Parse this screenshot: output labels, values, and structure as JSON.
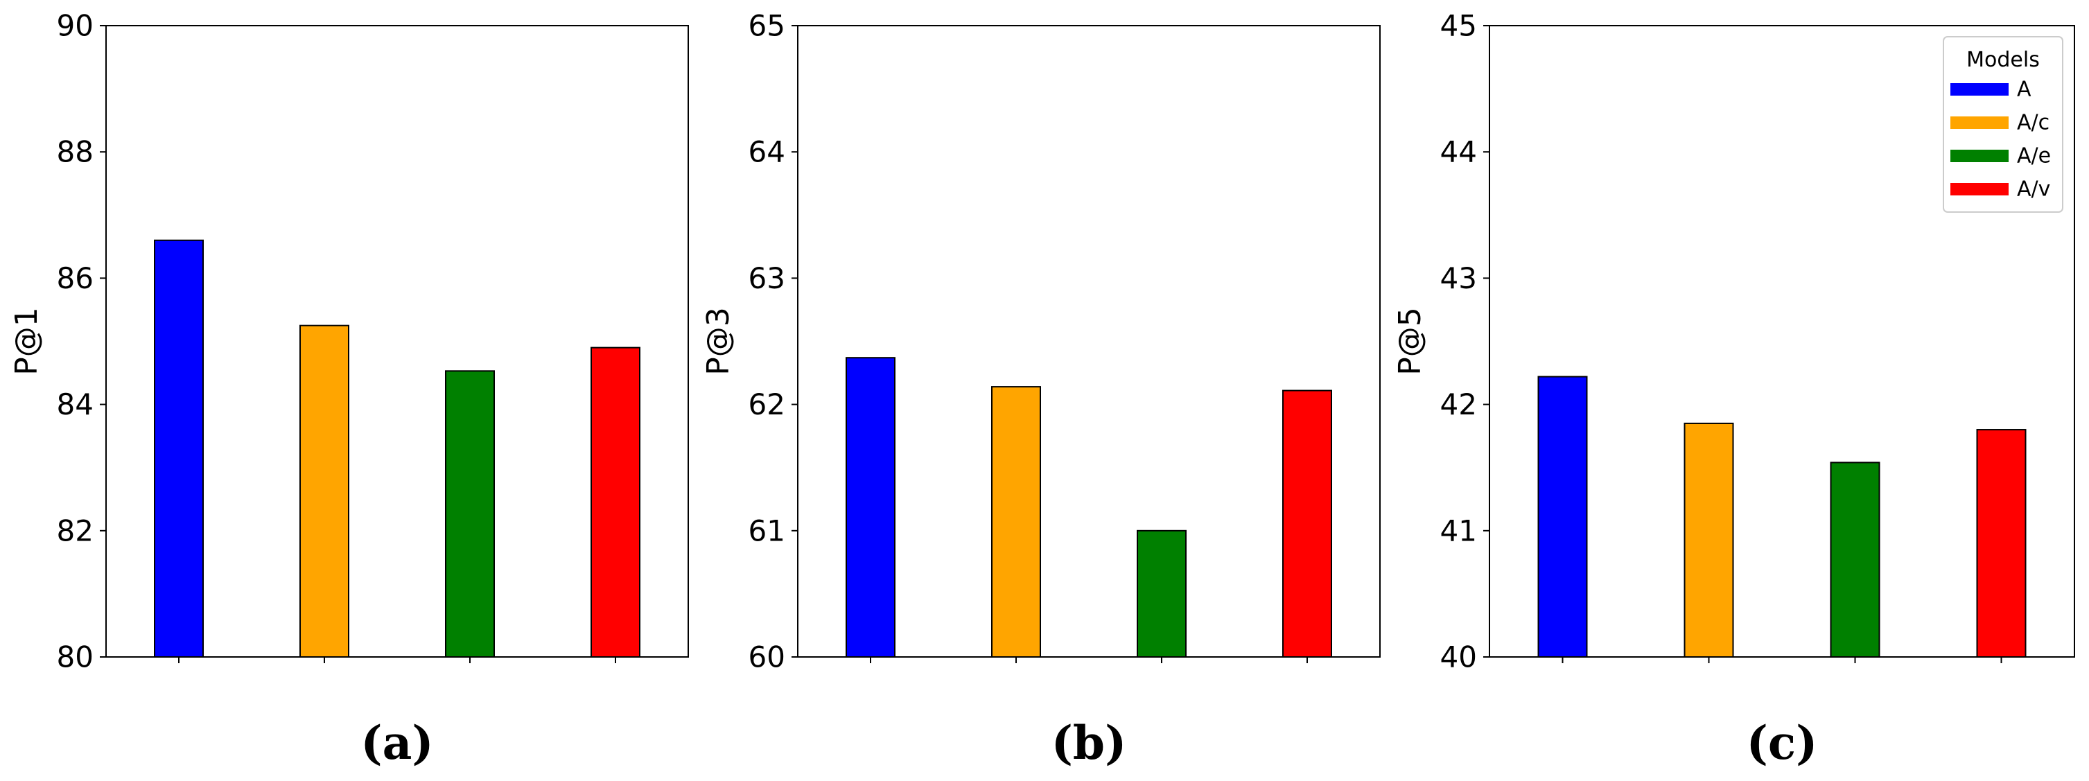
{
  "chart_data": [
    {
      "type": "bar",
      "categories": [
        "A",
        "A/c",
        "A/e",
        "A/v"
      ],
      "values": [
        86.6,
        85.25,
        84.53,
        84.9
      ],
      "colors": [
        "#0000ff",
        "#ffa500",
        "#008000",
        "#ff0000"
      ],
      "ylabel": "P@1",
      "ylim": [
        80,
        90
      ],
      "yticks": [
        80,
        82,
        84,
        86,
        88,
        90
      ],
      "caption": "(a)",
      "grid": false
    },
    {
      "type": "bar",
      "categories": [
        "A",
        "A/c",
        "A/e",
        "A/v"
      ],
      "values": [
        62.37,
        62.14,
        61.0,
        62.11
      ],
      "colors": [
        "#0000ff",
        "#ffa500",
        "#008000",
        "#ff0000"
      ],
      "ylabel": "P@3",
      "ylim": [
        60,
        65
      ],
      "yticks": [
        60,
        61,
        62,
        63,
        64,
        65
      ],
      "caption": "(b)",
      "grid": false
    },
    {
      "type": "bar",
      "categories": [
        "A",
        "A/c",
        "A/e",
        "A/v"
      ],
      "values": [
        42.22,
        41.85,
        41.54,
        41.8
      ],
      "colors": [
        "#0000ff",
        "#ffa500",
        "#008000",
        "#ff0000"
      ],
      "ylabel": "P@5",
      "ylim": [
        40,
        45
      ],
      "yticks": [
        40,
        41,
        42,
        43,
        44,
        45
      ],
      "caption": "(c)",
      "grid": false,
      "legend": {
        "title": "Models",
        "placement": "top-right",
        "entries": [
          {
            "label": "A",
            "color": "#0000ff"
          },
          {
            "label": "A/c",
            "color": "#ffa500"
          },
          {
            "label": "A/e",
            "color": "#008000"
          },
          {
            "label": "A/v",
            "color": "#ff0000"
          }
        ]
      }
    }
  ]
}
